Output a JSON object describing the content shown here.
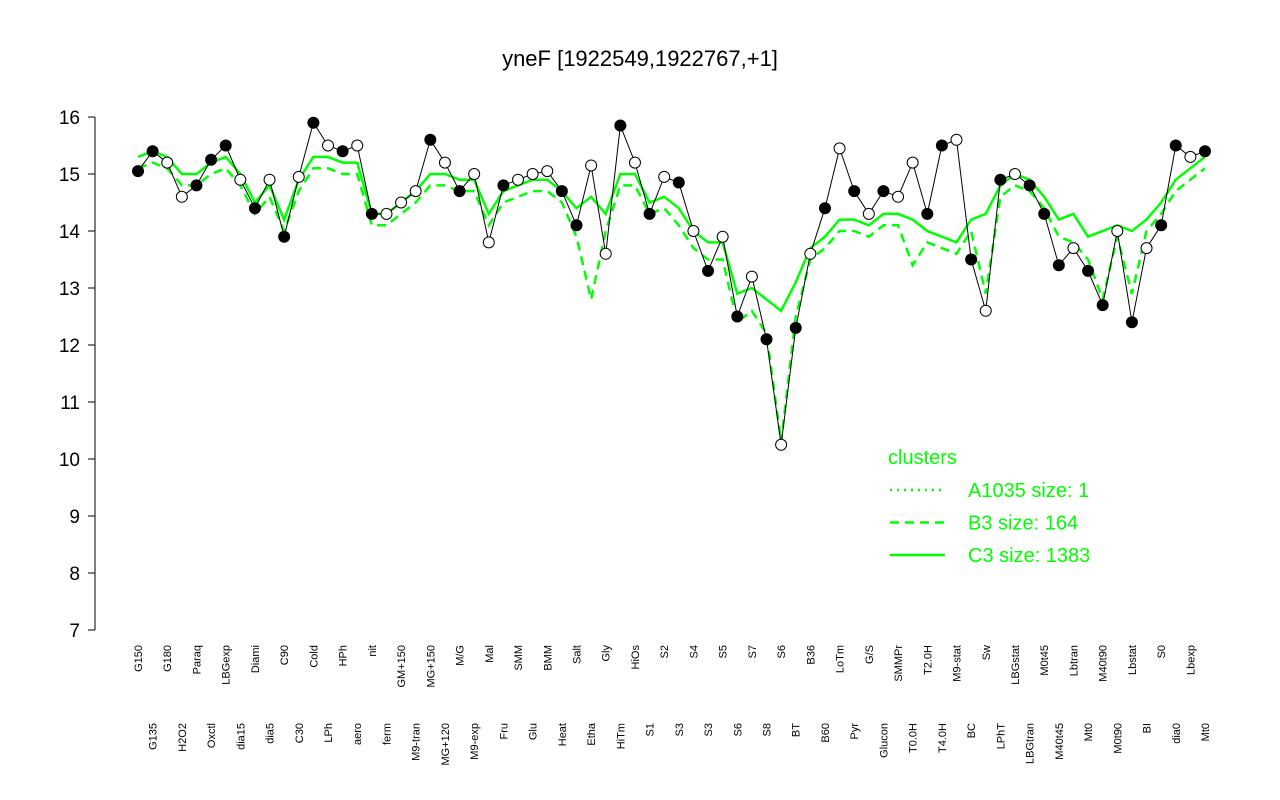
{
  "chart_data": {
    "type": "line",
    "title": "yneF [1922549,1922767,+1]",
    "categories": [
      "G150",
      "G135",
      "G180",
      "H2O2",
      "Paraq",
      "Oxctl",
      "LBGexp",
      "dia15",
      "Diami",
      "dia5",
      "C90",
      "C30",
      "Cold",
      "LPh",
      "HPh",
      "aero",
      "nit",
      "ferm",
      "GM+150",
      "M9-tran",
      "MG+150",
      "MG+120",
      "M/G",
      "M9-exp",
      "Mal",
      "Fru",
      "SMM",
      "Glu",
      "BMM",
      "Heat",
      "Salt",
      "Etha",
      "Gly",
      "HiTm",
      "HiOs",
      "S1",
      "S2",
      "S3",
      "S4",
      "S3",
      "S5",
      "S6",
      "S7",
      "S8",
      "S6",
      "BT",
      "B36",
      "B60",
      "LoTm",
      "Pyr",
      "G/S",
      "Glucon",
      "SMMPr",
      "T0.0H",
      "T2.0H",
      "T4.0H",
      "M9-stat",
      "BC",
      "Sw",
      "LPhT",
      "LBGstat",
      "LBGtran",
      "M0t45",
      "M40t45",
      "Lbtran",
      "Mt0",
      "M40t90",
      "M0t90",
      "Lbstat",
      "BI",
      "S0",
      "dia0",
      "Lbexp",
      "Mt0"
    ],
    "values": [
      15.05,
      15.4,
      15.2,
      14.6,
      14.8,
      15.25,
      15.5,
      14.9,
      14.4,
      14.9,
      13.9,
      14.95,
      15.9,
      15.5,
      15.4,
      15.5,
      14.3,
      14.3,
      14.5,
      14.7,
      15.6,
      15.2,
      14.7,
      15.0,
      13.8,
      14.8,
      14.9,
      15.0,
      15.05,
      14.7,
      14.1,
      15.15,
      13.6,
      15.85,
      15.2,
      14.3,
      14.95,
      14.85,
      14.0,
      13.3,
      13.9,
      12.5,
      13.2,
      12.1,
      10.25,
      12.3,
      13.6,
      14.4,
      15.45,
      14.7,
      14.3,
      14.7,
      14.6,
      15.2,
      14.3,
      15.5,
      15.6,
      13.5,
      12.6,
      14.9,
      15.0,
      14.8,
      14.3,
      13.4,
      13.7,
      13.3,
      12.7,
      14.0,
      12.4,
      13.7,
      14.1,
      15.5,
      15.3,
      15.4
    ],
    "point_colors": [
      "#000000",
      "#000000",
      "#ffffff",
      "#ffffff",
      "#000000",
      "#000000",
      "#000000",
      "#ffffff",
      "#000000",
      "#ffffff",
      "#000000",
      "#ffffff",
      "#000000",
      "#ffffff",
      "#000000",
      "#ffffff",
      "#000000",
      "#ffffff",
      "#ffffff",
      "#ffffff",
      "#000000",
      "#ffffff",
      "#000000",
      "#ffffff",
      "#ffffff",
      "#000000",
      "#ffffff",
      "#ffffff",
      "#ffffff",
      "#000000",
      "#000000",
      "#ffffff",
      "#ffffff",
      "#000000",
      "#ffffff",
      "#000000",
      "#ffffff",
      "#000000",
      "#ffffff",
      "#000000",
      "#ffffff",
      "#000000",
      "#ffffff",
      "#000000",
      "#ffffff",
      "#000000",
      "#ffffff",
      "#000000",
      "#ffffff",
      "#000000",
      "#ffffff",
      "#000000",
      "#ffffff",
      "#ffffff",
      "#000000",
      "#000000",
      "#ffffff",
      "#000000",
      "#ffffff",
      "#000000",
      "#ffffff",
      "#000000",
      "#000000",
      "#000000",
      "#ffffff",
      "#000000",
      "#000000",
      "#ffffff",
      "#000000",
      "#ffffff",
      "#000000",
      "#000000",
      "#ffffff",
      "#000000"
    ],
    "series": [
      {
        "color": "#00ff00",
        "style": "dashed",
        "values": [
          15.1,
          15.2,
          15.1,
          14.8,
          14.8,
          15.0,
          15.1,
          14.8,
          14.3,
          14.6,
          14.0,
          14.7,
          15.1,
          15.1,
          15.0,
          15.0,
          14.1,
          14.1,
          14.3,
          14.5,
          14.8,
          14.8,
          14.7,
          14.7,
          14.1,
          14.5,
          14.6,
          14.7,
          14.7,
          14.5,
          13.9,
          12.8,
          14.0,
          14.8,
          14.8,
          14.3,
          14.4,
          14.1,
          13.7,
          13.5,
          13.5,
          12.4,
          12.6,
          12.2,
          10.3,
          12.5,
          13.5,
          13.7,
          14.0,
          14.0,
          13.9,
          14.1,
          14.1,
          13.4,
          13.8,
          13.7,
          13.6,
          14.0,
          12.9,
          14.6,
          14.8,
          14.7,
          14.4,
          13.9,
          13.8,
          13.5,
          12.8,
          13.9,
          12.9,
          14.0,
          14.3,
          14.7,
          14.9,
          15.1
        ]
      },
      {
        "color": "#00ff00",
        "style": "solid",
        "values": [
          15.3,
          15.4,
          15.3,
          15.0,
          15.0,
          15.2,
          15.3,
          15.0,
          14.5,
          14.8,
          14.2,
          14.9,
          15.3,
          15.3,
          15.2,
          15.2,
          14.3,
          14.3,
          14.5,
          14.7,
          15.0,
          15.0,
          14.9,
          14.9,
          14.3,
          14.7,
          14.8,
          14.9,
          14.9,
          14.7,
          14.4,
          14.6,
          14.3,
          15.0,
          15.0,
          14.5,
          14.6,
          14.4,
          14.0,
          13.8,
          13.8,
          12.9,
          13.0,
          12.8,
          12.6,
          13.1,
          13.7,
          13.9,
          14.2,
          14.2,
          14.1,
          14.3,
          14.3,
          14.2,
          14.0,
          13.9,
          13.8,
          14.2,
          14.3,
          14.8,
          15.0,
          14.9,
          14.6,
          14.2,
          14.3,
          13.9,
          14.0,
          14.1,
          14.0,
          14.2,
          14.5,
          14.9,
          15.1,
          15.3
        ]
      }
    ],
    "ylim": [
      7,
      16
    ],
    "yticks": [
      7,
      8,
      9,
      10,
      11,
      12,
      13,
      14,
      15,
      16
    ],
    "legend": {
      "title": "clusters",
      "color": "#00ff00",
      "items": [
        {
          "label": "A1035 size: 1",
          "style": "dotted"
        },
        {
          "label": "B3 size: 164",
          "style": "dashed"
        },
        {
          "label": "C3 size: 1383",
          "style": "solid"
        }
      ]
    }
  }
}
